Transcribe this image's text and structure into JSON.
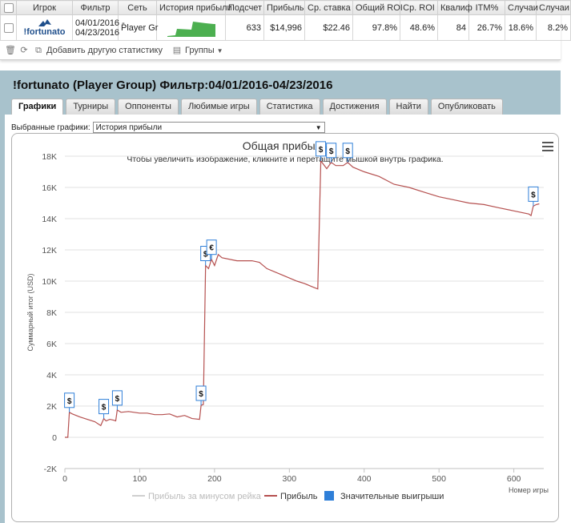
{
  "stats_table": {
    "headers": [
      "Игрок",
      "Фильтр",
      "Сеть",
      "История прибыли",
      "Подсчет",
      "Прибыль",
      "Ср. ставка",
      "Общий ROI",
      "Ср. ROI",
      "Квалиф",
      "ITM%",
      "Случаи",
      "Случаи"
    ],
    "row": {
      "player_logo_text": "!fortunato",
      "filter_from": "04/01/2016 -",
      "filter_to": "04/23/2016",
      "network": "Player Gr",
      "count": "633",
      "profit": "$14,996",
      "avg_stake": "$22.46",
      "total_roi": "97.8%",
      "avg_roi": "48.6%",
      "qualif": "84",
      "itm": "26.7%",
      "case1": "18.6%",
      "case2": "8.2%"
    },
    "colors": {
      "sparkline": "#4caf50"
    }
  },
  "toolbar": {
    "add_stats": "Добавить другую статистику",
    "groups": "Группы"
  },
  "panel": {
    "title": "!fortunato (Player Group) Фильтр:04/01/2016-04/23/2016",
    "tabs": [
      "Графики",
      "Турниры",
      "Оппоненты",
      "Любимые игры",
      "Статистика",
      "Достижения",
      "Найти",
      "Опубликовать"
    ],
    "active_tab": 0,
    "chart_select_label": "Выбранные графики:",
    "chart_select_value": "История прибыли"
  },
  "chart_data": {
    "type": "line",
    "title": "Общая прибыль",
    "subtitle": "Чтобы увеличить изображение, кликните и перетащите мышкой внутрь графика.",
    "ylabel": "Суммарный итог (USD)",
    "xlabel": "Номер игры",
    "xlim": [
      0,
      640
    ],
    "ylim": [
      -2000,
      18000
    ],
    "x_ticks": [
      0,
      100,
      200,
      300,
      400,
      500,
      600
    ],
    "y_ticks": [
      -2000,
      0,
      2000,
      4000,
      6000,
      8000,
      10000,
      12000,
      14000,
      16000,
      18000
    ],
    "y_tick_labels": [
      "-2K",
      "0",
      "2K",
      "4K",
      "6K",
      "8K",
      "10K",
      "12K",
      "14K",
      "16K",
      "18K"
    ],
    "grid": true,
    "legend_position": "bottom",
    "series": [
      {
        "name": "Прибыль за минусом рейка",
        "color": "#cfcfcf",
        "points": []
      },
      {
        "name": "Прибыль",
        "color": "#b5504f",
        "points": [
          [
            0,
            0
          ],
          [
            4,
            0
          ],
          [
            6,
            1600
          ],
          [
            10,
            1500
          ],
          [
            20,
            1300
          ],
          [
            30,
            1150
          ],
          [
            40,
            1000
          ],
          [
            48,
            750
          ],
          [
            52,
            1200
          ],
          [
            55,
            1050
          ],
          [
            60,
            1150
          ],
          [
            65,
            1100
          ],
          [
            68,
            1050
          ],
          [
            70,
            1750
          ],
          [
            75,
            1600
          ],
          [
            85,
            1650
          ],
          [
            100,
            1550
          ],
          [
            110,
            1550
          ],
          [
            120,
            1450
          ],
          [
            130,
            1450
          ],
          [
            140,
            1500
          ],
          [
            150,
            1300
          ],
          [
            160,
            1400
          ],
          [
            170,
            1200
          ],
          [
            180,
            1150
          ],
          [
            182,
            2050
          ],
          [
            185,
            2100
          ],
          [
            188,
            11000
          ],
          [
            192,
            10800
          ],
          [
            196,
            11400
          ],
          [
            200,
            11000
          ],
          [
            205,
            11700
          ],
          [
            210,
            11500
          ],
          [
            230,
            11300
          ],
          [
            250,
            11300
          ],
          [
            260,
            11200
          ],
          [
            270,
            10800
          ],
          [
            290,
            10400
          ],
          [
            310,
            10000
          ],
          [
            320,
            9850
          ],
          [
            330,
            9650
          ],
          [
            338,
            9500
          ],
          [
            342,
            17700
          ],
          [
            350,
            17200
          ],
          [
            356,
            17600
          ],
          [
            362,
            17400
          ],
          [
            372,
            17400
          ],
          [
            378,
            17600
          ],
          [
            385,
            17300
          ],
          [
            400,
            17000
          ],
          [
            420,
            16700
          ],
          [
            440,
            16200
          ],
          [
            460,
            16000
          ],
          [
            480,
            15700
          ],
          [
            500,
            15400
          ],
          [
            520,
            15200
          ],
          [
            540,
            15000
          ],
          [
            560,
            14900
          ],
          [
            580,
            14700
          ],
          [
            600,
            14500
          ],
          [
            620,
            14300
          ],
          [
            623,
            14200
          ],
          [
            626,
            14800
          ],
          [
            630,
            14900
          ],
          [
            634,
            14950
          ]
        ]
      },
      {
        "name": "Значительные выигрыши",
        "color": "#2f7fd8",
        "points": []
      }
    ],
    "annotations": [
      {
        "x": 6,
        "y": 1600,
        "symbol": "$"
      },
      {
        "x": 52,
        "y": 1200,
        "symbol": "$"
      },
      {
        "x": 70,
        "y": 1750,
        "symbol": "$"
      },
      {
        "x": 182,
        "y": 2050,
        "symbol": "$"
      },
      {
        "x": 188,
        "y": 11000,
        "symbol": "$"
      },
      {
        "x": 196,
        "y": 11400,
        "symbol": "€"
      },
      {
        "x": 342,
        "y": 17700,
        "symbol": "$"
      },
      {
        "x": 356,
        "y": 17600,
        "symbol": "$"
      },
      {
        "x": 378,
        "y": 17600,
        "symbol": "$"
      },
      {
        "x": 626,
        "y": 14800,
        "symbol": "$"
      }
    ]
  }
}
